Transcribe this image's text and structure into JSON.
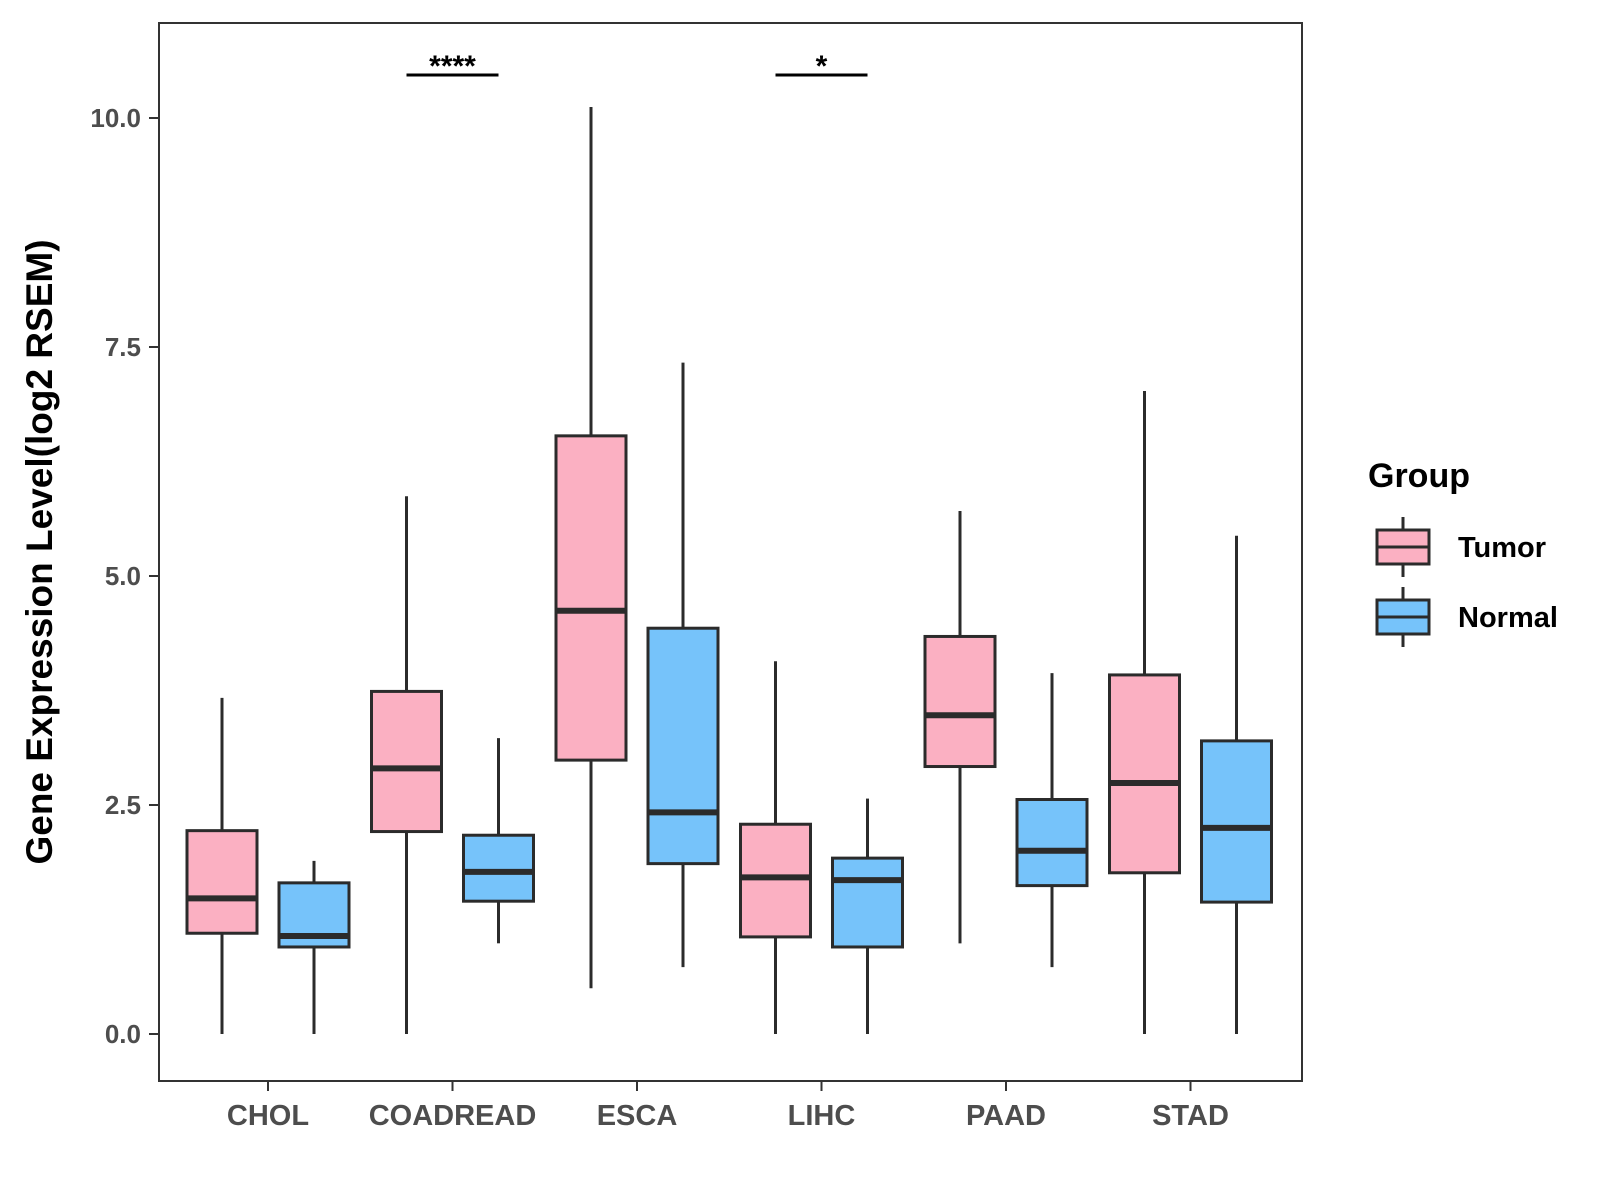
{
  "chart_data": {
    "type": "boxplot",
    "title": "",
    "xlabel": "",
    "ylabel": "Gene Expression Level(log2 RSEM)",
    "ylim": [
      -0.5,
      10.6
    ],
    "yticks": [
      0,
      2.5,
      5,
      7.5,
      10
    ],
    "ytick_labels": [
      "0.0",
      "2.5",
      "5.0",
      "7.5",
      "10.0"
    ],
    "categories": [
      "CHOL",
      "COADREAD",
      "ESCA",
      "LIHC",
      "PAAD",
      "STAD"
    ],
    "legend": {
      "title": "Group",
      "position": "right",
      "entries": [
        "Tumor",
        "Normal"
      ]
    },
    "series": [
      {
        "name": "Tumor",
        "color": "#FBB0C2",
        "boxes": [
          {
            "min": 0.0,
            "q1": 1.1,
            "median": 1.48,
            "q3": 2.22,
            "max": 3.67
          },
          {
            "min": 0.0,
            "q1": 2.21,
            "median": 2.9,
            "q3": 3.74,
            "max": 5.87
          },
          {
            "min": 0.5,
            "q1": 2.99,
            "median": 4.62,
            "q3": 6.53,
            "max": 10.12
          },
          {
            "min": 0.0,
            "q1": 1.06,
            "median": 1.71,
            "q3": 2.29,
            "max": 4.07
          },
          {
            "min": 0.99,
            "q1": 2.92,
            "median": 3.48,
            "q3": 4.34,
            "max": 5.71
          },
          {
            "min": 0.0,
            "q1": 1.76,
            "median": 2.74,
            "q3": 3.92,
            "max": 7.02
          }
        ]
      },
      {
        "name": "Normal",
        "color": "#76C3FA",
        "boxes": [
          {
            "min": 0.0,
            "q1": 0.95,
            "median": 1.07,
            "q3": 1.65,
            "max": 1.89
          },
          {
            "min": 0.99,
            "q1": 1.45,
            "median": 1.77,
            "q3": 2.17,
            "max": 3.23
          },
          {
            "min": 0.73,
            "q1": 1.86,
            "median": 2.42,
            "q3": 4.43,
            "max": 7.33
          },
          {
            "min": 0.0,
            "q1": 0.95,
            "median": 1.68,
            "q3": 1.92,
            "max": 2.57
          },
          {
            "min": 0.73,
            "q1": 1.62,
            "median": 2.0,
            "q3": 2.56,
            "max": 3.94
          },
          {
            "min": 0.0,
            "q1": 1.44,
            "median": 2.25,
            "q3": 3.2,
            "max": 5.44
          }
        ]
      }
    ],
    "annotations": [
      {
        "category": "COADREAD",
        "label": "****"
      },
      {
        "category": "LIHC",
        "label": "*"
      }
    ]
  }
}
